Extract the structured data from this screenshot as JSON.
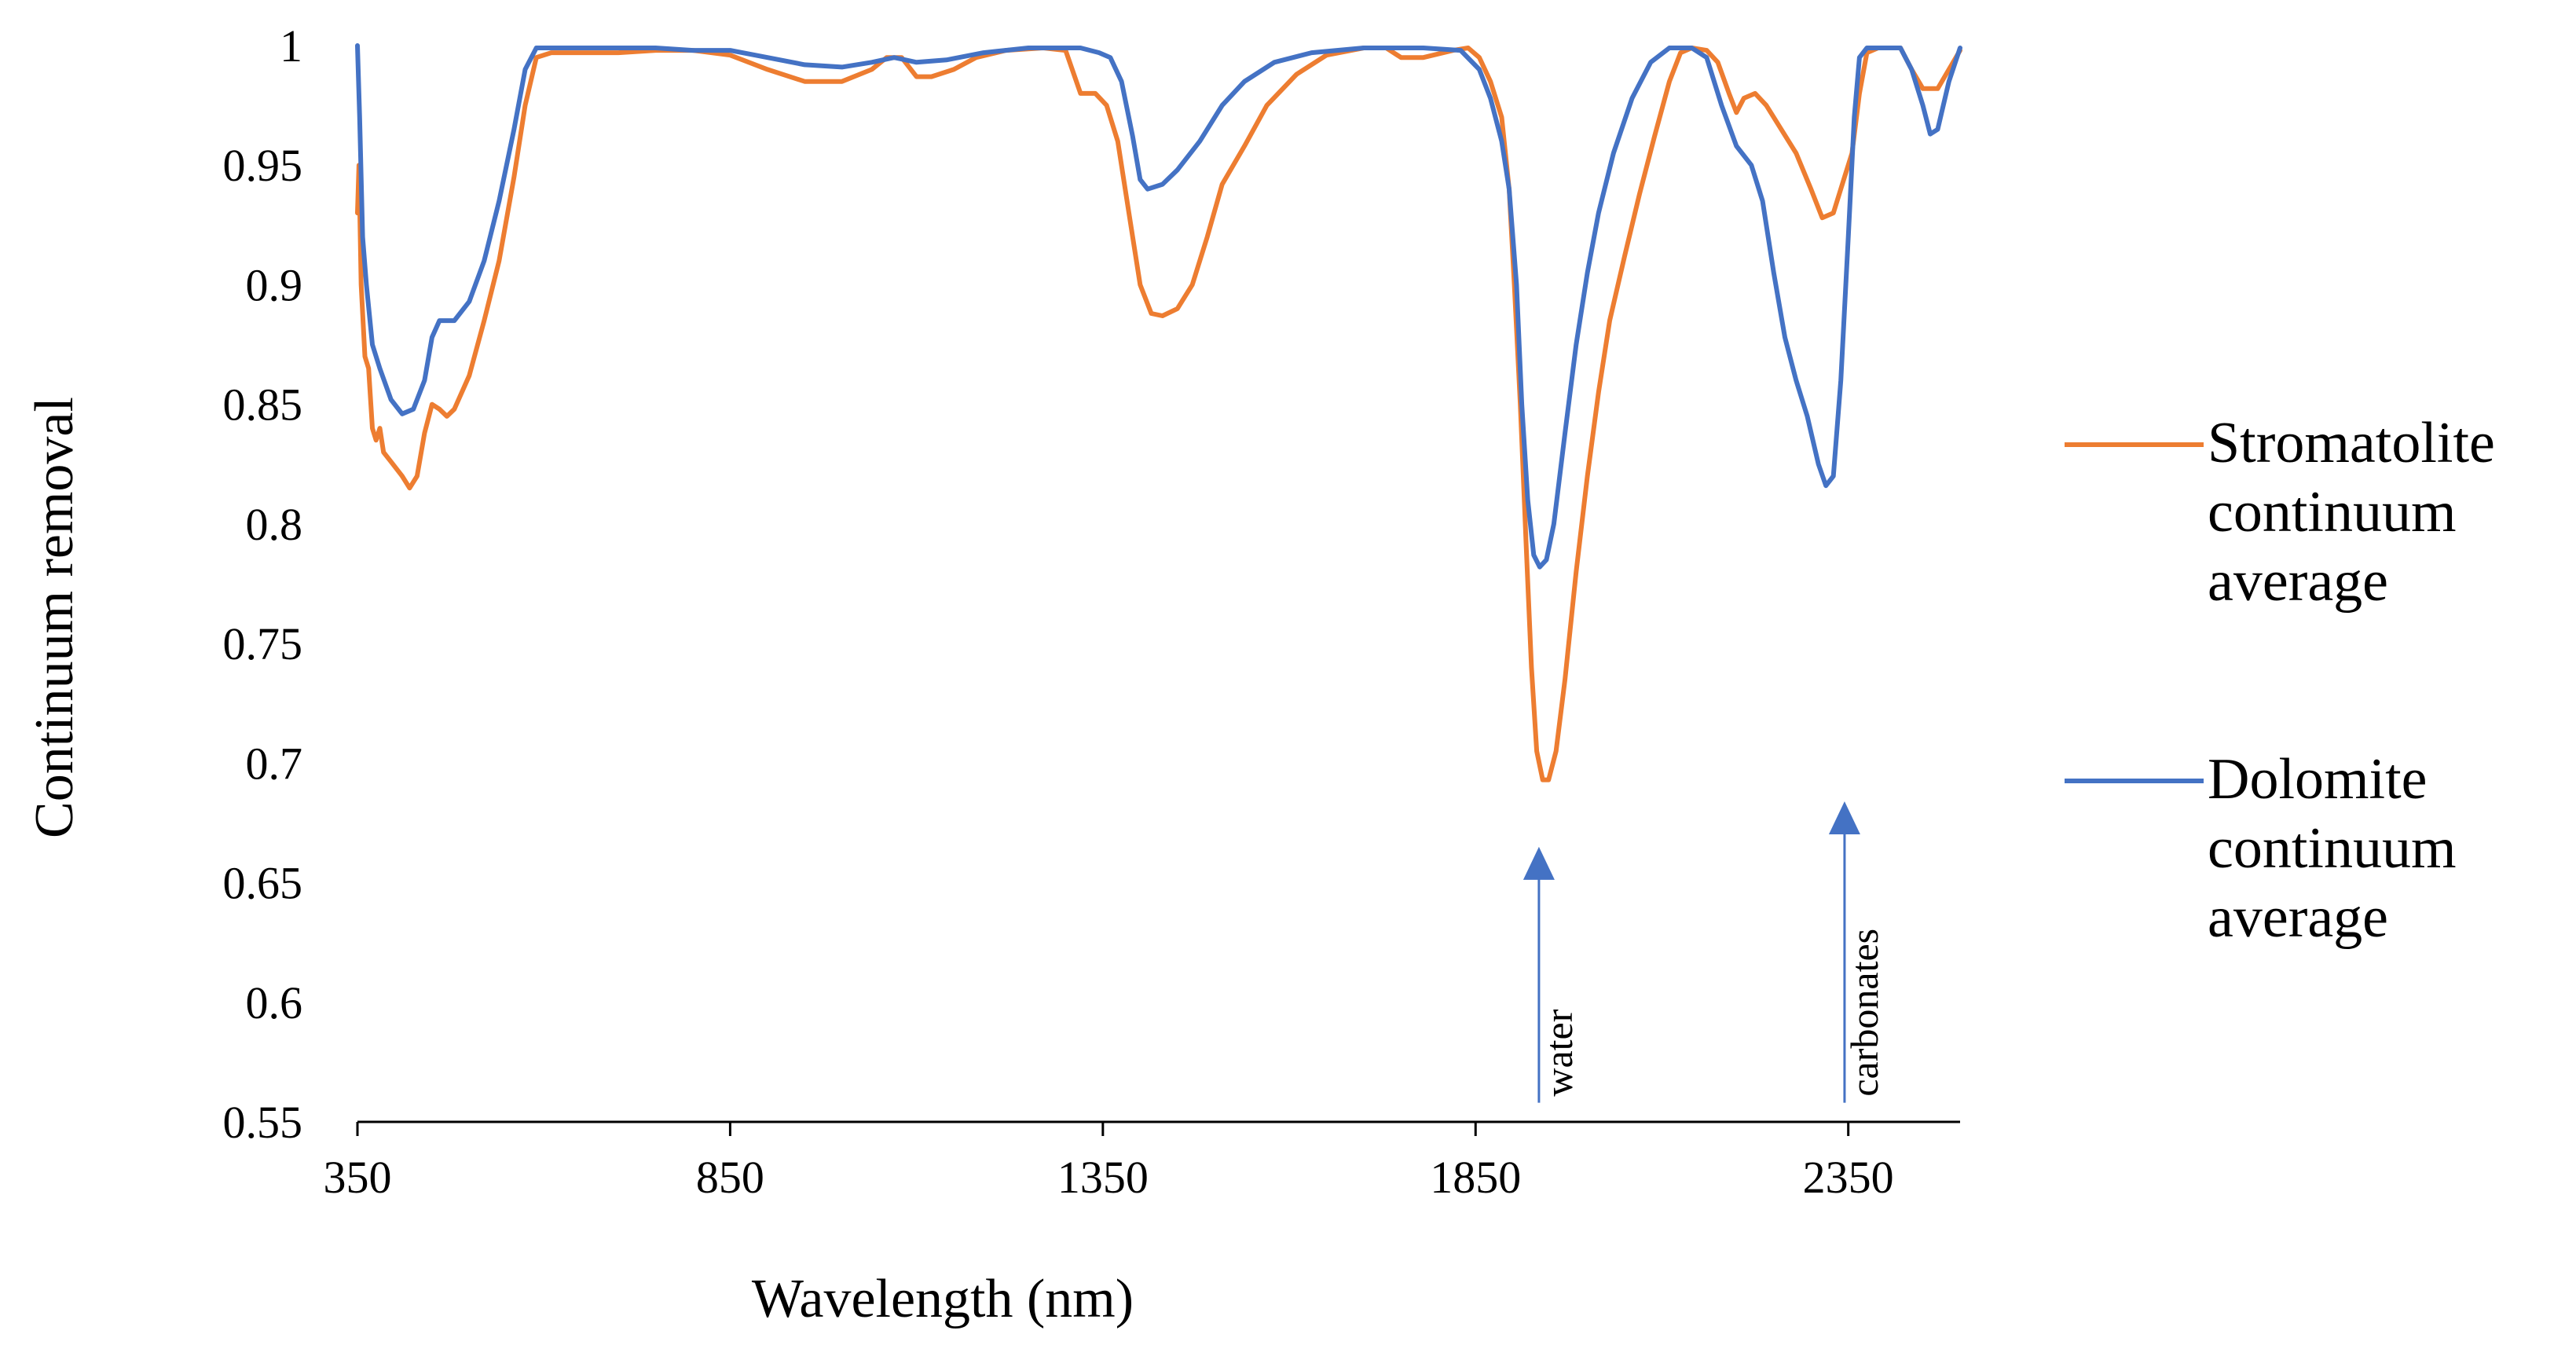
{
  "chart_data": {
    "type": "line",
    "title": "",
    "xlabel": "Wavelength (nm)",
    "ylabel": "Continuum removal",
    "xlim": [
      350,
      2500
    ],
    "ylim": [
      0.55,
      1.0
    ],
    "x_ticks": [
      350,
      850,
      1350,
      1850,
      2350
    ],
    "y_ticks": [
      0.55,
      0.6,
      0.65,
      0.7,
      0.75,
      0.8,
      0.85,
      0.9,
      0.95,
      1
    ],
    "x_tick_labels": [
      "350",
      "850",
      "1350",
      "1850",
      "2350"
    ],
    "y_tick_labels": [
      "0.55",
      "0.6",
      "0.65",
      "0.7",
      "0.75",
      "0.8",
      "0.85",
      "0.9",
      "0.95",
      "1"
    ],
    "grid": false,
    "legend_position": "right",
    "series": [
      {
        "name": "Stromatolite continuum average",
        "legend_lines": [
          "Stromatolite",
          "continuum",
          "average"
        ],
        "color": "#ED7D31",
        "points": [
          [
            350,
            0.93
          ],
          [
            352,
            0.95
          ],
          [
            355,
            0.9
          ],
          [
            360,
            0.87
          ],
          [
            365,
            0.865
          ],
          [
            370,
            0.84
          ],
          [
            375,
            0.835
          ],
          [
            380,
            0.84
          ],
          [
            385,
            0.83
          ],
          [
            395,
            0.826
          ],
          [
            410,
            0.82
          ],
          [
            420,
            0.815
          ],
          [
            430,
            0.82
          ],
          [
            440,
            0.838
          ],
          [
            450,
            0.85
          ],
          [
            460,
            0.848
          ],
          [
            470,
            0.845
          ],
          [
            480,
            0.848
          ],
          [
            500,
            0.862
          ],
          [
            520,
            0.885
          ],
          [
            540,
            0.91
          ],
          [
            560,
            0.945
          ],
          [
            575,
            0.975
          ],
          [
            590,
            0.995
          ],
          [
            610,
            0.997
          ],
          [
            650,
            0.997
          ],
          [
            700,
            0.997
          ],
          [
            750,
            0.998
          ],
          [
            800,
            0.998
          ],
          [
            850,
            0.996
          ],
          [
            900,
            0.99
          ],
          [
            950,
            0.985
          ],
          [
            1000,
            0.985
          ],
          [
            1040,
            0.99
          ],
          [
            1060,
            0.995
          ],
          [
            1080,
            0.995
          ],
          [
            1100,
            0.987
          ],
          [
            1120,
            0.987
          ],
          [
            1150,
            0.99
          ],
          [
            1180,
            0.995
          ],
          [
            1220,
            0.998
          ],
          [
            1270,
            0.999
          ],
          [
            1300,
            0.998
          ],
          [
            1320,
            0.98
          ],
          [
            1340,
            0.98
          ],
          [
            1355,
            0.975
          ],
          [
            1370,
            0.96
          ],
          [
            1385,
            0.93
          ],
          [
            1400,
            0.9
          ],
          [
            1415,
            0.888
          ],
          [
            1430,
            0.887
          ],
          [
            1450,
            0.89
          ],
          [
            1470,
            0.9
          ],
          [
            1490,
            0.92
          ],
          [
            1510,
            0.942
          ],
          [
            1540,
            0.958
          ],
          [
            1570,
            0.975
          ],
          [
            1610,
            0.988
          ],
          [
            1650,
            0.996
          ],
          [
            1700,
            0.999
          ],
          [
            1730,
            0.999
          ],
          [
            1750,
            0.995
          ],
          [
            1780,
            0.995
          ],
          [
            1820,
            0.998
          ],
          [
            1840,
            0.999
          ],
          [
            1855,
            0.995
          ],
          [
            1870,
            0.985
          ],
          [
            1885,
            0.97
          ],
          [
            1895,
            0.94
          ],
          [
            1902,
            0.9
          ],
          [
            1910,
            0.85
          ],
          [
            1918,
            0.79
          ],
          [
            1925,
            0.74
          ],
          [
            1932,
            0.705
          ],
          [
            1940,
            0.693
          ],
          [
            1948,
            0.693
          ],
          [
            1958,
            0.705
          ],
          [
            1970,
            0.735
          ],
          [
            1985,
            0.78
          ],
          [
            2000,
            0.82
          ],
          [
            2015,
            0.855
          ],
          [
            2030,
            0.885
          ],
          [
            2050,
            0.912
          ],
          [
            2070,
            0.938
          ],
          [
            2090,
            0.962
          ],
          [
            2110,
            0.985
          ],
          [
            2125,
            0.997
          ],
          [
            2140,
            0.999
          ],
          [
            2160,
            0.998
          ],
          [
            2175,
            0.993
          ],
          [
            2190,
            0.98
          ],
          [
            2200,
            0.972
          ],
          [
            2210,
            0.978
          ],
          [
            2225,
            0.98
          ],
          [
            2240,
            0.975
          ],
          [
            2260,
            0.965
          ],
          [
            2280,
            0.955
          ],
          [
            2300,
            0.94
          ],
          [
            2315,
            0.928
          ],
          [
            2330,
            0.93
          ],
          [
            2345,
            0.945
          ],
          [
            2355,
            0.955
          ],
          [
            2365,
            0.98
          ],
          [
            2375,
            0.997
          ],
          [
            2390,
            0.999
          ],
          [
            2420,
            0.999
          ],
          [
            2435,
            0.99
          ],
          [
            2450,
            0.982
          ],
          [
            2470,
            0.982
          ],
          [
            2485,
            0.99
          ],
          [
            2500,
            0.998
          ]
        ]
      },
      {
        "name": "Dolomite continuum average",
        "legend_lines": [
          "Dolomite",
          "continuum",
          "average"
        ],
        "color": "#4472C4",
        "points": [
          [
            350,
            1.0
          ],
          [
            353,
            0.97
          ],
          [
            357,
            0.92
          ],
          [
            362,
            0.9
          ],
          [
            370,
            0.875
          ],
          [
            380,
            0.865
          ],
          [
            395,
            0.852
          ],
          [
            410,
            0.846
          ],
          [
            425,
            0.848
          ],
          [
            440,
            0.86
          ],
          [
            450,
            0.878
          ],
          [
            460,
            0.885
          ],
          [
            480,
            0.885
          ],
          [
            500,
            0.893
          ],
          [
            520,
            0.91
          ],
          [
            540,
            0.935
          ],
          [
            560,
            0.965
          ],
          [
            575,
            0.99
          ],
          [
            590,
            0.999
          ],
          [
            650,
            0.999
          ],
          [
            750,
            0.999
          ],
          [
            800,
            0.998
          ],
          [
            850,
            0.998
          ],
          [
            900,
            0.995
          ],
          [
            950,
            0.992
          ],
          [
            1000,
            0.991
          ],
          [
            1040,
            0.993
          ],
          [
            1070,
            0.995
          ],
          [
            1100,
            0.993
          ],
          [
            1140,
            0.994
          ],
          [
            1190,
            0.997
          ],
          [
            1250,
            0.999
          ],
          [
            1320,
            0.999
          ],
          [
            1345,
            0.997
          ],
          [
            1360,
            0.995
          ],
          [
            1375,
            0.985
          ],
          [
            1390,
            0.962
          ],
          [
            1400,
            0.944
          ],
          [
            1410,
            0.94
          ],
          [
            1430,
            0.942
          ],
          [
            1450,
            0.948
          ],
          [
            1480,
            0.96
          ],
          [
            1510,
            0.975
          ],
          [
            1540,
            0.985
          ],
          [
            1580,
            0.993
          ],
          [
            1630,
            0.997
          ],
          [
            1700,
            0.999
          ],
          [
            1780,
            0.999
          ],
          [
            1830,
            0.998
          ],
          [
            1855,
            0.99
          ],
          [
            1870,
            0.978
          ],
          [
            1885,
            0.96
          ],
          [
            1895,
            0.94
          ],
          [
            1905,
            0.9
          ],
          [
            1912,
            0.85
          ],
          [
            1920,
            0.81
          ],
          [
            1928,
            0.787
          ],
          [
            1936,
            0.782
          ],
          [
            1945,
            0.785
          ],
          [
            1955,
            0.8
          ],
          [
            1970,
            0.838
          ],
          [
            1985,
            0.875
          ],
          [
            2000,
            0.905
          ],
          [
            2015,
            0.93
          ],
          [
            2035,
            0.955
          ],
          [
            2060,
            0.978
          ],
          [
            2085,
            0.993
          ],
          [
            2110,
            0.999
          ],
          [
            2140,
            0.999
          ],
          [
            2160,
            0.995
          ],
          [
            2180,
            0.975
          ],
          [
            2200,
            0.958
          ],
          [
            2220,
            0.95
          ],
          [
            2235,
            0.935
          ],
          [
            2250,
            0.905
          ],
          [
            2265,
            0.878
          ],
          [
            2280,
            0.86
          ],
          [
            2295,
            0.845
          ],
          [
            2310,
            0.825
          ],
          [
            2320,
            0.816
          ],
          [
            2330,
            0.82
          ],
          [
            2340,
            0.86
          ],
          [
            2350,
            0.92
          ],
          [
            2358,
            0.97
          ],
          [
            2365,
            0.995
          ],
          [
            2375,
            0.999
          ],
          [
            2420,
            0.999
          ],
          [
            2435,
            0.99
          ],
          [
            2450,
            0.975
          ],
          [
            2460,
            0.963
          ],
          [
            2470,
            0.965
          ],
          [
            2485,
            0.985
          ],
          [
            2500,
            0.999
          ]
        ]
      }
    ],
    "annotations": [
      {
        "label": "water",
        "x": 1935,
        "y_from": 0.558,
        "y_to": 0.665,
        "color": "#4472C4"
      },
      {
        "label": "carbonates",
        "x": 2345,
        "y_from": 0.558,
        "y_to": 0.684,
        "color": "#4472C4"
      }
    ]
  }
}
